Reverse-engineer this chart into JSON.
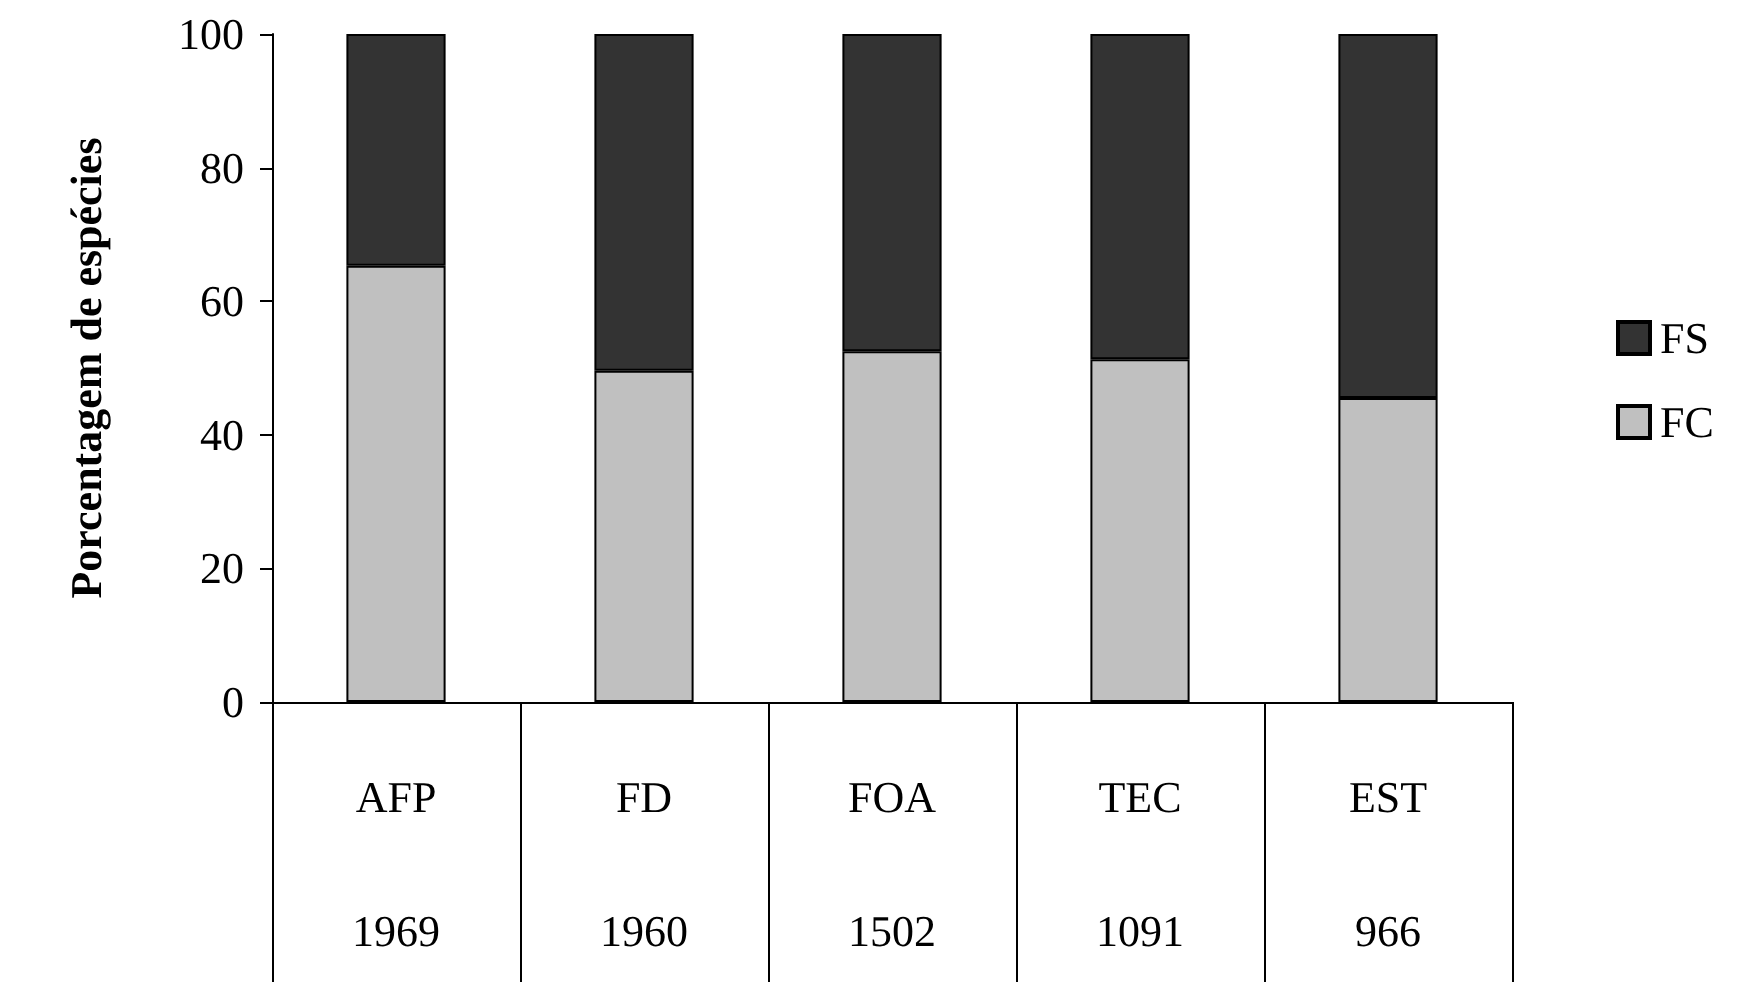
{
  "chart_data": {
    "type": "bar",
    "ylabel": "Porcentagem de espécies",
    "categories": [
      "AFP\n1969",
      "FD\n1960",
      "FOA\n1502",
      "TEC\n1091",
      "EST\n966"
    ],
    "series": [
      {
        "name": "FC",
        "color": "#c0c0c0",
        "values": [
          65.3,
          49.6,
          52.5,
          51.3,
          45.5
        ]
      },
      {
        "name": "FS",
        "color": "#333333",
        "values": [
          34.7,
          50.4,
          47.5,
          48.7,
          54.5
        ]
      }
    ],
    "stacked": true,
    "ylim": [
      0,
      100
    ],
    "yticks": [
      0,
      20,
      40,
      60,
      80,
      100
    ],
    "grid": false,
    "legend": "right"
  }
}
